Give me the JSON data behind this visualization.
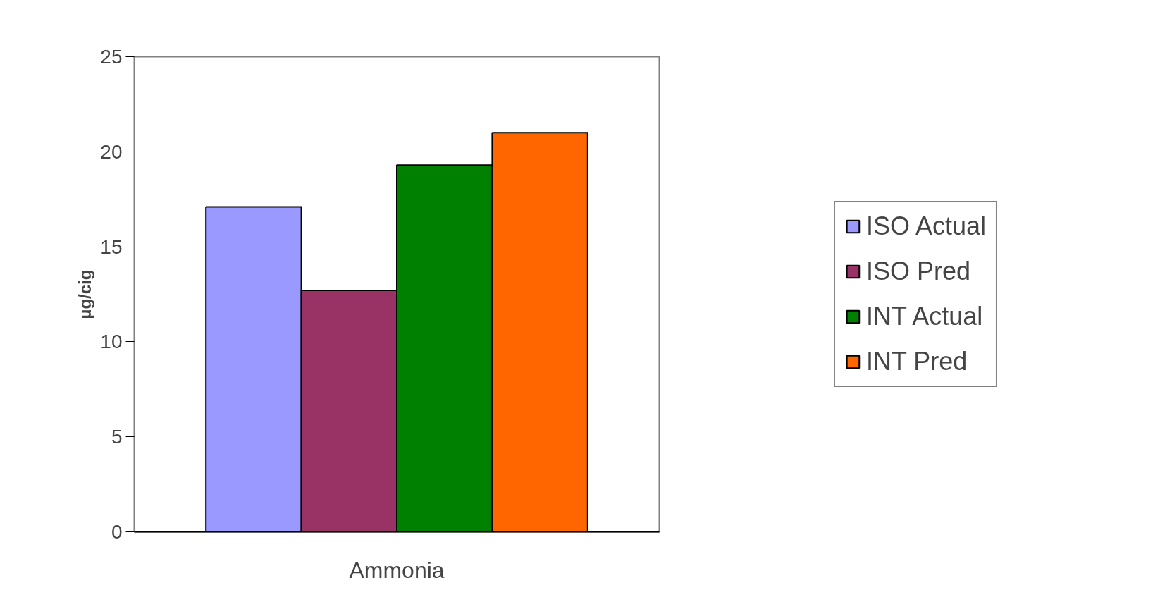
{
  "chart_data": {
    "type": "bar",
    "ylabel": "µg/cig",
    "categories": [
      "Ammonia"
    ],
    "series": [
      {
        "name": "ISO Actual",
        "color": "#9999ff",
        "values": [
          17.1
        ]
      },
      {
        "name": "ISO Pred",
        "color": "#993366",
        "values": [
          12.7
        ]
      },
      {
        "name": "INT Actual",
        "color": "#008000",
        "values": [
          19.3
        ]
      },
      {
        "name": "INT Pred",
        "color": "#ff6600",
        "values": [
          21.0
        ]
      }
    ],
    "ylim": [
      0,
      25
    ],
    "yticks": [
      0,
      5,
      10,
      15,
      20,
      25
    ],
    "grid": false,
    "legend": "right"
  }
}
